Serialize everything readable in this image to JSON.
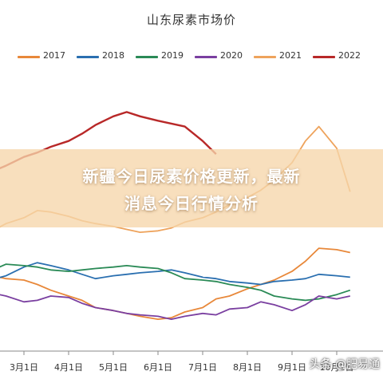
{
  "chart_data": {
    "type": "line",
    "title": "山东尿素市场价",
    "xlabel": "",
    "ylabel": "",
    "x_ticks": [
      "3月1日",
      "4月1日",
      "5月1日",
      "6月1日",
      "7月1日",
      "8月1日",
      "9月1日",
      "10月1日"
    ],
    "x_range": [
      2.0,
      10.3
    ],
    "y_range": [
      1500,
      3400
    ],
    "legend_position": "top",
    "grid": false,
    "series": [
      {
        "name": "2017",
        "color": "#e8883a",
        "x": [
          2.0,
          2.3,
          2.6,
          3.0,
          3.3,
          3.6,
          4.0,
          4.3,
          4.6,
          5.0,
          5.3,
          5.6,
          6.0,
          6.3,
          6.6,
          7.0,
          7.3,
          7.6,
          8.0,
          8.3,
          8.6,
          9.0,
          9.3,
          9.6,
          10.0,
          10.3
        ],
        "values": [
          2050,
          2020,
          2000,
          1990,
          1960,
          1920,
          1880,
          1850,
          1800,
          1780,
          1760,
          1740,
          1720,
          1730,
          1770,
          1800,
          1860,
          1880,
          1930,
          1960,
          1990,
          2050,
          2120,
          2210,
          2200,
          2180
        ]
      },
      {
        "name": "2018",
        "color": "#2a6fb0",
        "x": [
          2.0,
          2.3,
          2.6,
          3.0,
          3.3,
          3.6,
          4.0,
          4.3,
          4.6,
          5.0,
          5.3,
          5.6,
          6.0,
          6.3,
          6.6,
          7.0,
          7.3,
          7.6,
          8.0,
          8.3,
          8.6,
          9.0,
          9.3,
          9.6,
          10.0,
          10.3
        ],
        "values": [
          2000,
          1995,
          2020,
          2080,
          2110,
          2090,
          2060,
          2030,
          2000,
          2020,
          2030,
          2040,
          2050,
          2060,
          2040,
          2010,
          2000,
          1980,
          1970,
          1960,
          1980,
          1990,
          2000,
          2030,
          2020,
          2010
        ]
      },
      {
        "name": "2019",
        "color": "#2a8a56",
        "x": [
          2.0,
          2.3,
          2.6,
          3.0,
          3.3,
          3.6,
          4.0,
          4.3,
          4.6,
          5.0,
          5.3,
          5.6,
          6.0,
          6.3,
          6.6,
          7.0,
          7.3,
          7.6,
          8.0,
          8.3,
          8.6,
          9.0,
          9.3,
          9.6,
          10.0,
          10.3
        ],
        "values": [
          2060,
          2060,
          2100,
          2090,
          2080,
          2060,
          2050,
          2060,
          2070,
          2080,
          2090,
          2080,
          2070,
          2040,
          2000,
          1990,
          1980,
          1960,
          1940,
          1920,
          1880,
          1860,
          1850,
          1860,
          1890,
          1920
        ]
      },
      {
        "name": "2020",
        "color": "#7a3fa0",
        "x": [
          2.0,
          2.3,
          2.6,
          3.0,
          3.3,
          3.6,
          4.0,
          4.3,
          4.6,
          5.0,
          5.3,
          5.6,
          6.0,
          6.3,
          6.6,
          7.0,
          7.3,
          7.6,
          8.0,
          8.3,
          8.6,
          9.0,
          9.3,
          9.6,
          10.0,
          10.3
        ],
        "values": [
          1870,
          1900,
          1880,
          1840,
          1850,
          1880,
          1870,
          1830,
          1800,
          1780,
          1760,
          1750,
          1740,
          1720,
          1740,
          1760,
          1750,
          1790,
          1800,
          1840,
          1820,
          1780,
          1820,
          1880,
          1860,
          1880
        ]
      },
      {
        "name": "2021",
        "color": "#eea35c",
        "x": [
          2.0,
          2.3,
          2.6,
          3.0,
          3.3,
          3.6,
          4.0,
          4.3,
          4.6,
          5.0,
          5.3,
          5.6,
          6.0,
          6.3,
          6.6,
          7.0,
          7.3,
          7.6,
          8.0,
          8.3,
          8.6,
          9.0,
          9.3,
          9.6,
          10.0,
          10.3
        ],
        "values": [
          2300,
          2330,
          2380,
          2420,
          2470,
          2460,
          2430,
          2400,
          2380,
          2360,
          2340,
          2320,
          2330,
          2350,
          2390,
          2420,
          2460,
          2510,
          2560,
          2610,
          2680,
          2800,
          2950,
          3050,
          2900,
          2600
        ]
      },
      {
        "name": "2022",
        "color": "#b82828",
        "x": [
          2.0,
          2.3,
          2.6,
          3.0,
          3.3,
          3.6,
          4.0,
          4.3,
          4.6,
          5.0,
          5.3,
          5.6,
          6.0,
          6.3,
          6.6,
          7.0,
          7.3
        ],
        "values": [
          2700,
          2740,
          2780,
          2840,
          2870,
          2910,
          2950,
          3000,
          3060,
          3120,
          3150,
          3120,
          3090,
          3070,
          3050,
          2950,
          2860
        ]
      }
    ]
  },
  "banner": {
    "line1": "新疆今日尿素价格更新，最新",
    "line2": "消息今日行情分析"
  },
  "watermark": "头条 @肥易通"
}
